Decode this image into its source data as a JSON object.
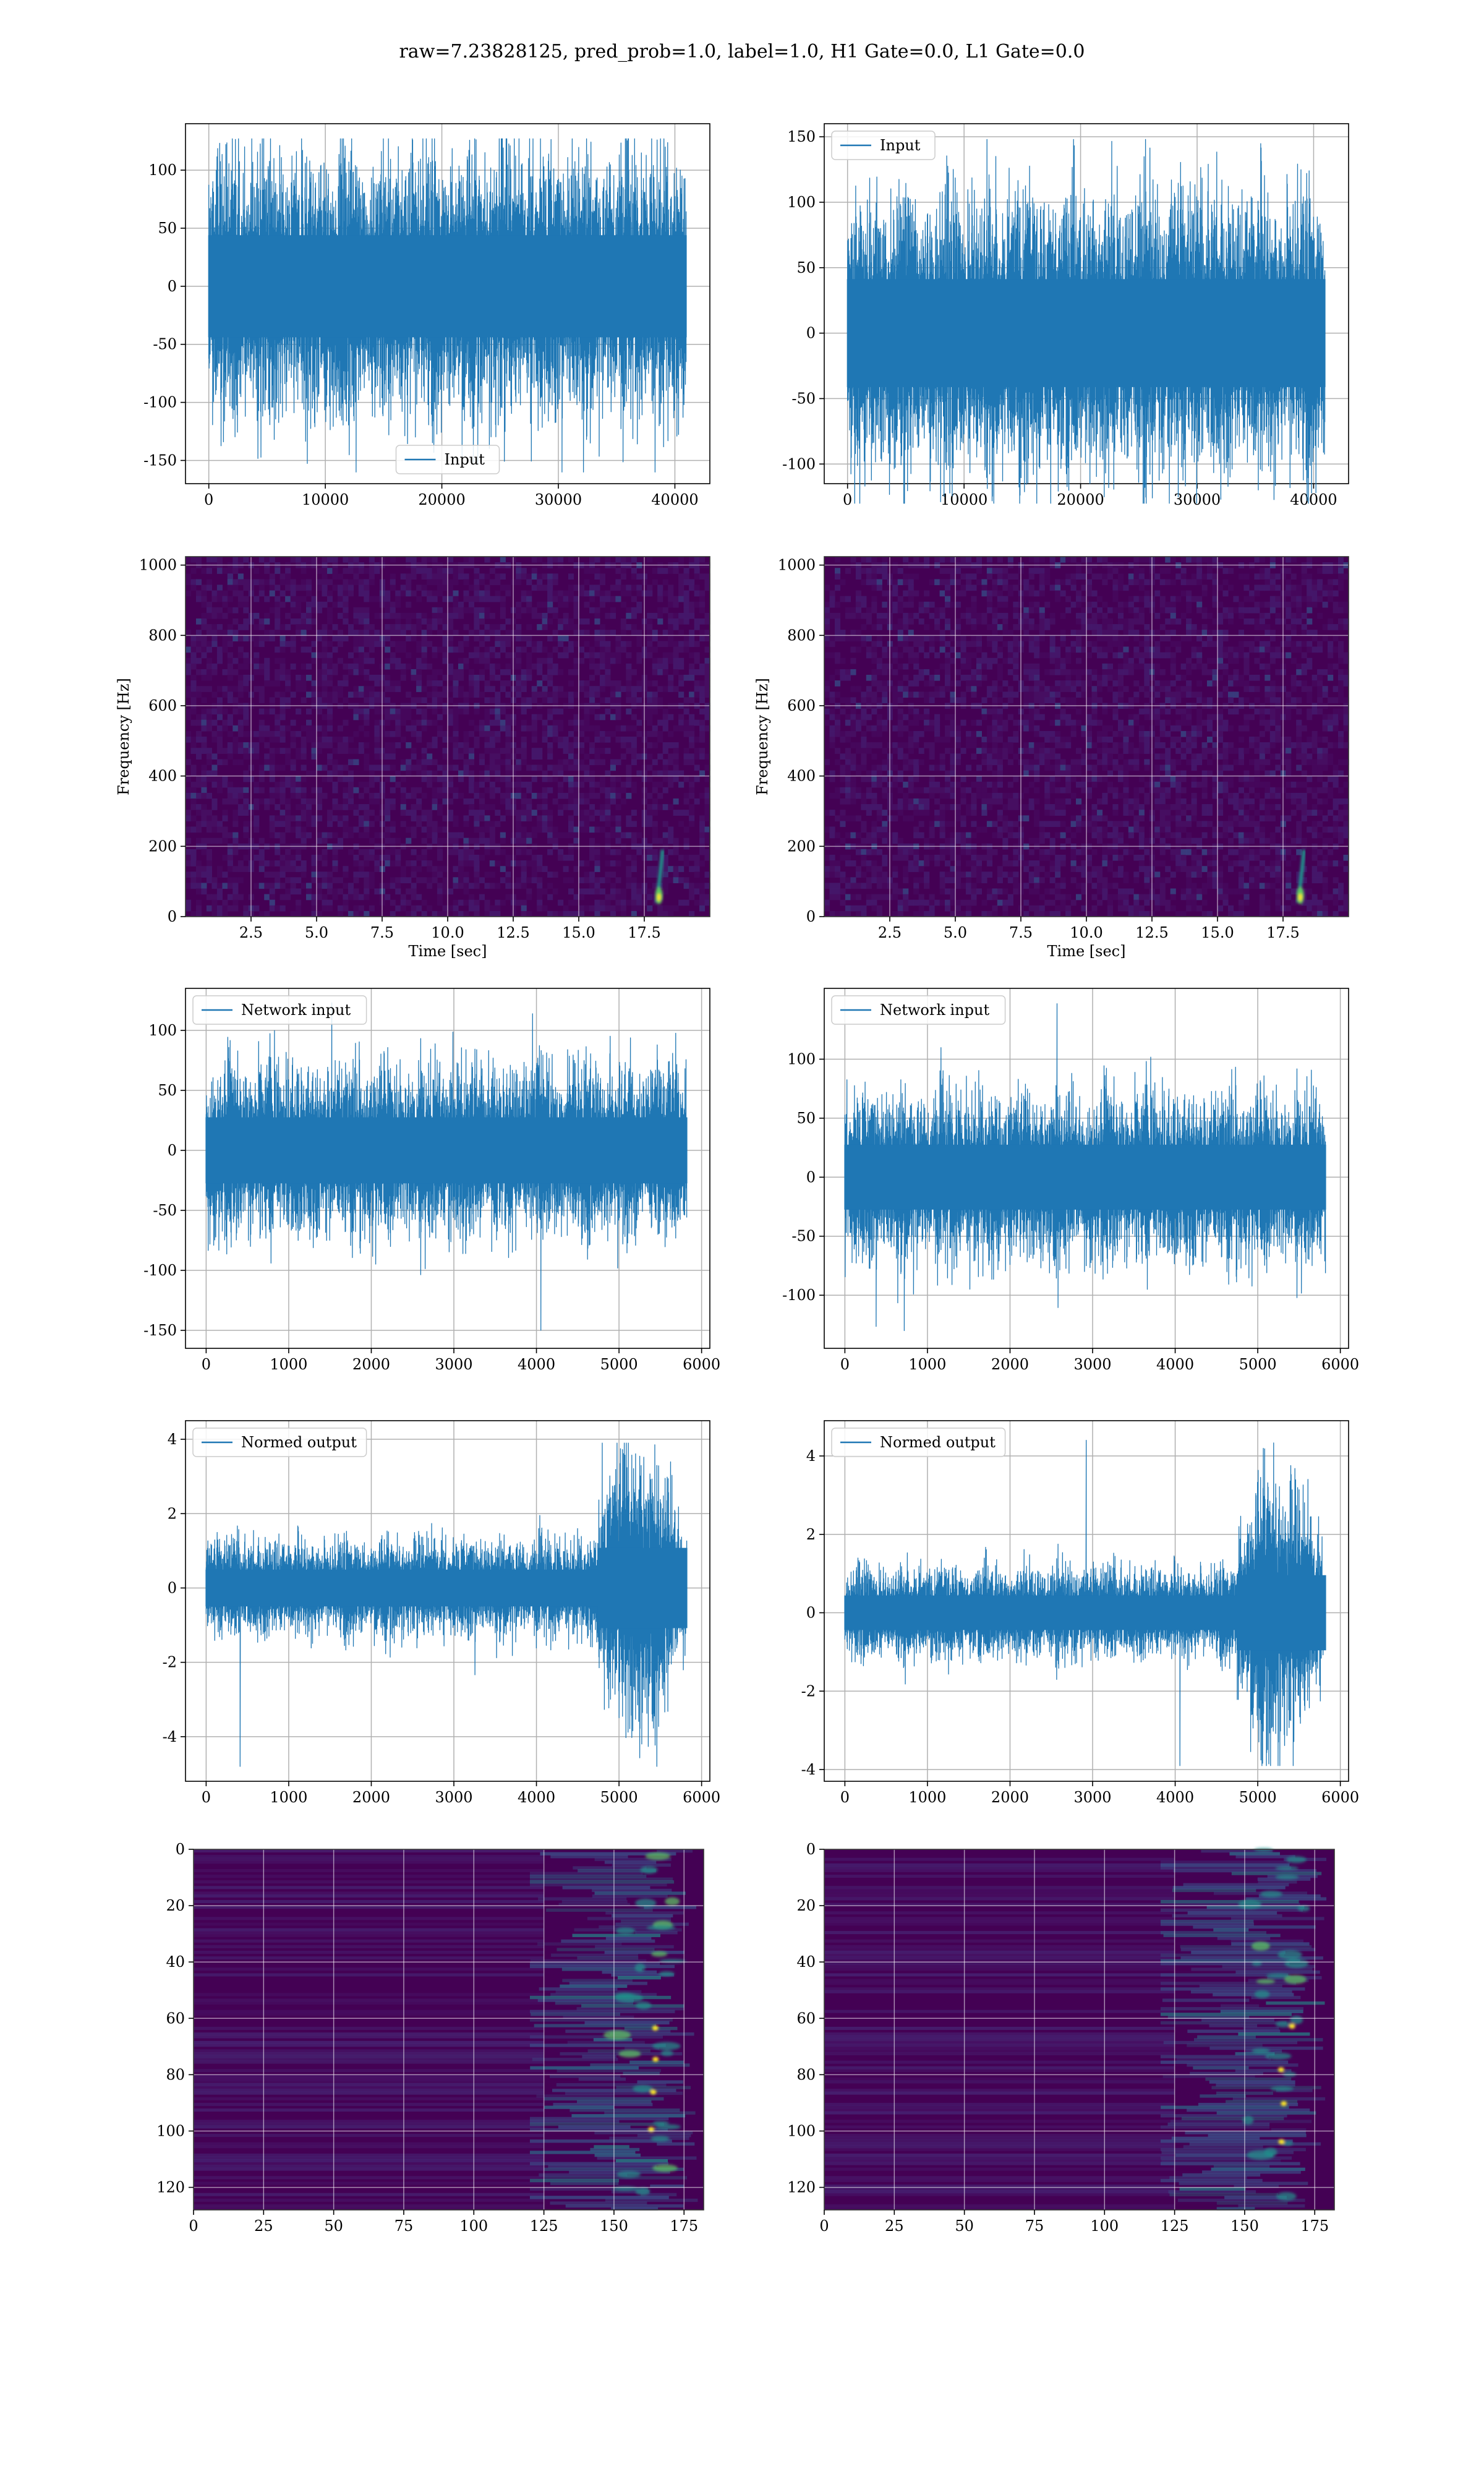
{
  "figure_title": "raw=7.23828125, pred_prob=1.0, label=1.0, H1 Gate=0.0, L1 Gate=0.0",
  "colors": {
    "line": "#1f77b4",
    "viridis_dark": "#440154",
    "viridis_teal": "#21918c",
    "viridis_green": "#5ec962",
    "viridis_yellow": "#fde725"
  },
  "chart_data": [
    {
      "id": "H1-input",
      "type": "line",
      "legend": "Input",
      "legend_loc": "lower center",
      "xlim": [
        -2000,
        43000
      ],
      "ylim": [
        -170,
        140
      ],
      "xticks": [
        0,
        10000,
        20000,
        30000,
        40000
      ],
      "yticks": [
        -150,
        -100,
        -50,
        0,
        50,
        100
      ],
      "x_end": 40960,
      "band": 80,
      "spike_top": 127,
      "spike_bottom": -160
    },
    {
      "id": "L1-input",
      "type": "line",
      "legend": "Input",
      "legend_loc": "upper left",
      "xlim": [
        -2000,
        43000
      ],
      "ylim": [
        -115,
        160
      ],
      "xticks": [
        0,
        10000,
        20000,
        30000,
        40000
      ],
      "yticks": [
        -100,
        -50,
        0,
        50,
        100,
        150
      ],
      "x_end": 40960,
      "band": 75,
      "spike_top": 148,
      "spike_bottom": -130
    },
    {
      "id": "H1-spectrogram",
      "type": "heatmap",
      "xlabel": "Time [sec]",
      "ylabel": "Frequency [Hz]",
      "xlim": [
        0,
        20
      ],
      "ylim": [
        0,
        1024
      ],
      "xticks": [
        2.5,
        5.0,
        7.5,
        10.0,
        12.5,
        15.0,
        17.5
      ],
      "xtick_labels": [
        "2.5",
        "5.0",
        "7.5",
        "10.0",
        "12.5",
        "15.0",
        "17.5"
      ],
      "yticks": [
        0,
        200,
        400,
        600,
        800,
        1000
      ],
      "chirp_time": 18.2
    },
    {
      "id": "L1-spectrogram",
      "type": "heatmap",
      "xlabel": "Time [sec]",
      "ylabel": "Frequency [Hz]",
      "xlim": [
        0,
        20
      ],
      "ylim": [
        0,
        1024
      ],
      "xticks": [
        2.5,
        5.0,
        7.5,
        10.0,
        12.5,
        15.0,
        17.5
      ],
      "xtick_labels": [
        "2.5",
        "5.0",
        "7.5",
        "10.0",
        "12.5",
        "15.0",
        "17.5"
      ],
      "yticks": [
        0,
        200,
        400,
        600,
        800,
        1000
      ],
      "chirp_time": 18.3
    },
    {
      "id": "H1-network-input",
      "type": "line",
      "legend": "Network input",
      "legend_loc": "upper left",
      "xlim": [
        -250,
        6100
      ],
      "ylim": [
        -165,
        135
      ],
      "xticks": [
        0,
        1000,
        2000,
        3000,
        4000,
        5000,
        6000
      ],
      "yticks": [
        -150,
        -100,
        -50,
        0,
        50,
        100
      ],
      "x_end": 5820,
      "band": 50,
      "spike_top": 123,
      "spike_bottom": -150
    },
    {
      "id": "L1-network-input",
      "type": "line",
      "legend": "Network input",
      "legend_loc": "upper left",
      "xlim": [
        -250,
        6100
      ],
      "ylim": [
        -145,
        160
      ],
      "xticks": [
        0,
        1000,
        2000,
        3000,
        4000,
        5000,
        6000
      ],
      "yticks": [
        -100,
        -50,
        0,
        50,
        100
      ],
      "x_end": 5820,
      "band": 50,
      "spike_top": 147,
      "spike_bottom": -130
    },
    {
      "id": "H1-normed-output",
      "type": "line",
      "legend": "Normed output",
      "legend_loc": "upper left",
      "xlim": [
        -250,
        6100
      ],
      "ylim": [
        -5.2,
        4.5
      ],
      "xticks": [
        0,
        1000,
        2000,
        3000,
        4000,
        5000,
        6000
      ],
      "yticks": [
        -4,
        -2,
        0,
        2,
        4
      ],
      "x_end": 5820,
      "band": 0.9,
      "spike_top": 3.9,
      "spike_bottom": -4.8,
      "burst_start": 4750
    },
    {
      "id": "L1-normed-output",
      "type": "line",
      "legend": "Normed output",
      "legend_loc": "upper left",
      "xlim": [
        -250,
        6100
      ],
      "ylim": [
        -4.3,
        4.9
      ],
      "xticks": [
        0,
        1000,
        2000,
        3000,
        4000,
        5000,
        6000
      ],
      "yticks": [
        -4,
        -2,
        0,
        2,
        4
      ],
      "x_end": 5820,
      "band": 0.8,
      "spike_top": 4.4,
      "spike_bottom": -3.9,
      "burst_start": 4750
    },
    {
      "id": "H1-feature-map",
      "type": "heatmap",
      "xlim": [
        0,
        182
      ],
      "ylim": [
        128,
        0
      ],
      "xticks": [
        0,
        25,
        50,
        75,
        100,
        125,
        150,
        175
      ],
      "yticks": [
        0,
        20,
        40,
        60,
        80,
        100,
        120
      ],
      "activity_start": 125
    },
    {
      "id": "L1-feature-map",
      "type": "heatmap",
      "xlim": [
        0,
        182
      ],
      "ylim": [
        128,
        0
      ],
      "xticks": [
        0,
        25,
        50,
        75,
        100,
        125,
        150,
        175
      ],
      "yticks": [
        0,
        20,
        40,
        60,
        80,
        100,
        120
      ],
      "activity_start": 125
    }
  ]
}
